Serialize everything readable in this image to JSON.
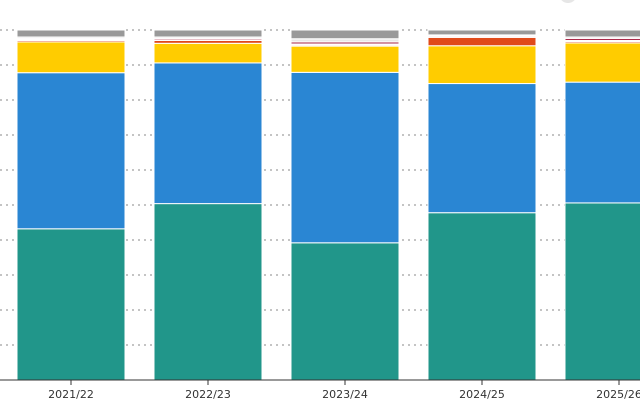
{
  "chart_data": {
    "type": "bar",
    "stacked": true,
    "normalized": true,
    "categories": [
      "2021/22",
      "2022/23",
      "2023/24",
      "2024/25",
      "2025/26"
    ],
    "ylim": [
      0,
      1
    ],
    "grid": true,
    "series": [
      {
        "color": "#21968a",
        "values": [
          0.432,
          0.504,
          0.392,
          0.478,
          0.506
        ]
      },
      {
        "color": "#2a86d3",
        "values": [
          0.446,
          0.402,
          0.487,
          0.369,
          0.345
        ]
      },
      {
        "color": "#ffcc00",
        "values": [
          0.088,
          0.056,
          0.075,
          0.108,
          0.112
        ]
      },
      {
        "color": "#e04a1a",
        "values": [
          0.004,
          0.008,
          0.003,
          0.024,
          0.004
        ]
      },
      {
        "color": "#ffffff",
        "values": [
          0.003,
          0.002,
          0.003,
          0.002,
          0.003
        ]
      },
      {
        "color": "#aa2a4a",
        "values": [
          0.003,
          0.004,
          0.006,
          0.003,
          0.006
        ]
      },
      {
        "color": "#e9e9e9",
        "values": [
          0.004,
          0.004,
          0.009,
          0.002,
          0.004
        ]
      },
      {
        "color": "#999999",
        "values": [
          0.02,
          0.02,
          0.025,
          0.014,
          0.02
        ]
      }
    ]
  }
}
